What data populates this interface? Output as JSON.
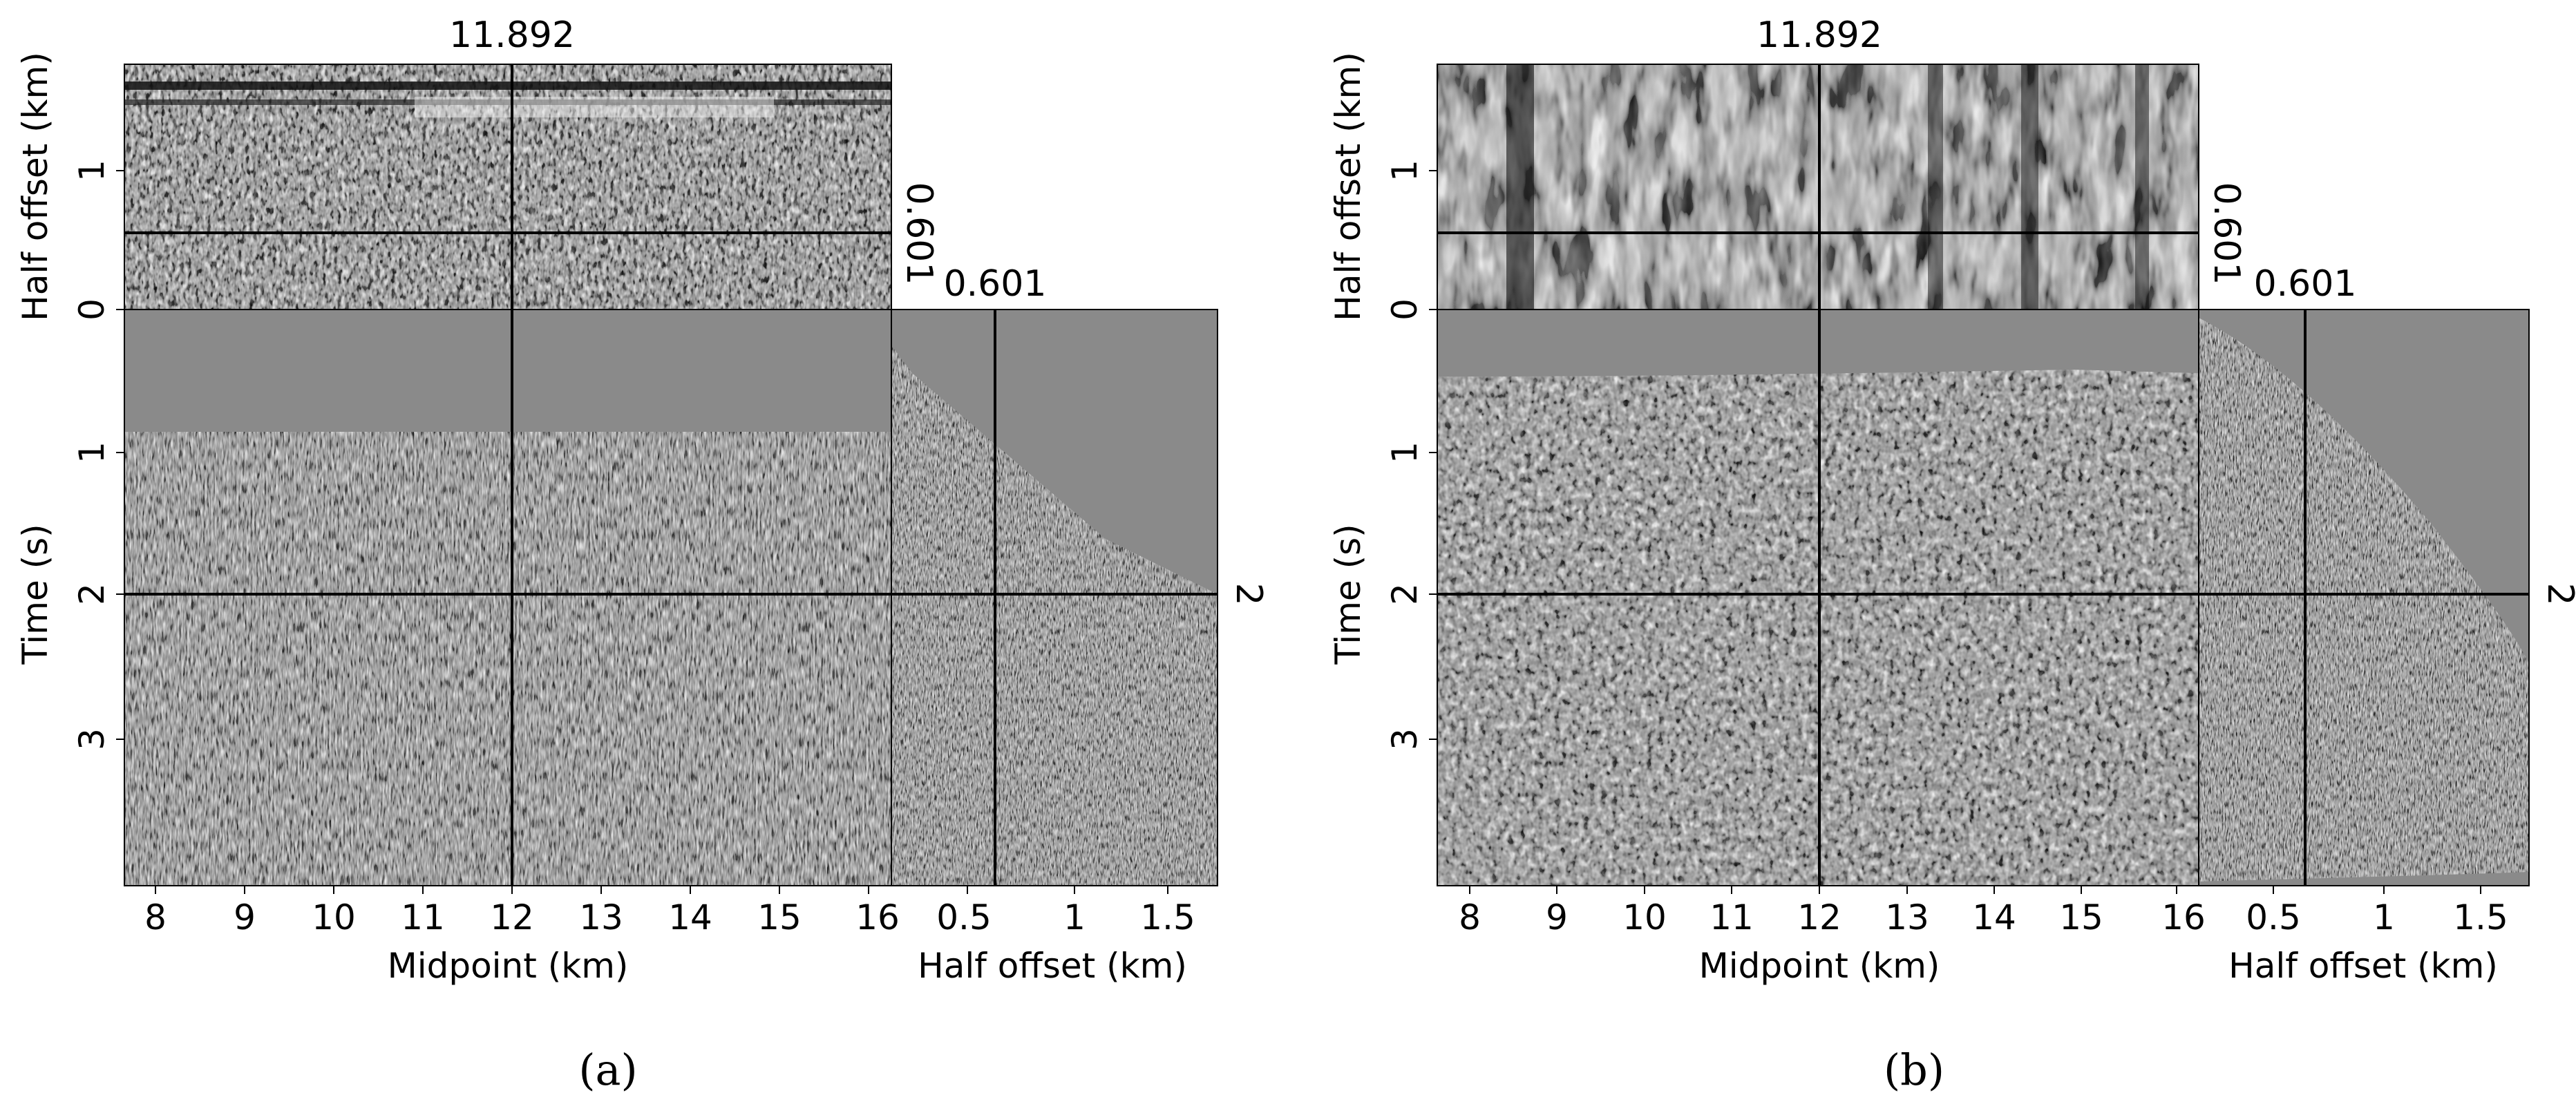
{
  "panels": [
    {
      "id": "a",
      "label": "(a)",
      "title_readout": "11.892",
      "offset_readout_side": "0.601",
      "offset_readout_top": "0.601",
      "time_readout": "2",
      "top_ylabel": "Half offset (km)",
      "main_ylabel": "Time (s)",
      "main_xlabel": "Midpoint (km)",
      "side_xlabel": "Half offset (km)",
      "midpoint_ticks": [
        "8",
        "9",
        "10",
        "11",
        "12",
        "13",
        "14",
        "15",
        "16"
      ],
      "time_ticks": [
        "1",
        "2",
        "3"
      ],
      "offset_vticks": [
        "0",
        "1"
      ],
      "offset_hticks": [
        "0.5",
        "1",
        "1.5"
      ]
    },
    {
      "id": "b",
      "label": "(b)",
      "title_readout": "11.892",
      "offset_readout_side": "0.601",
      "offset_readout_top": "0.601",
      "time_readout": "2",
      "top_ylabel": "Half offset (km)",
      "main_ylabel": "Time (s)",
      "main_xlabel": "Midpoint (km)",
      "side_xlabel": "Half offset (km)",
      "midpoint_ticks": [
        "8",
        "9",
        "10",
        "11",
        "12",
        "13",
        "14",
        "15",
        "16"
      ],
      "time_ticks": [
        "1",
        "2",
        "3"
      ],
      "offset_vticks": [
        "0",
        "1"
      ],
      "offset_hticks": [
        "0.5",
        "1",
        "1.5"
      ]
    }
  ]
}
